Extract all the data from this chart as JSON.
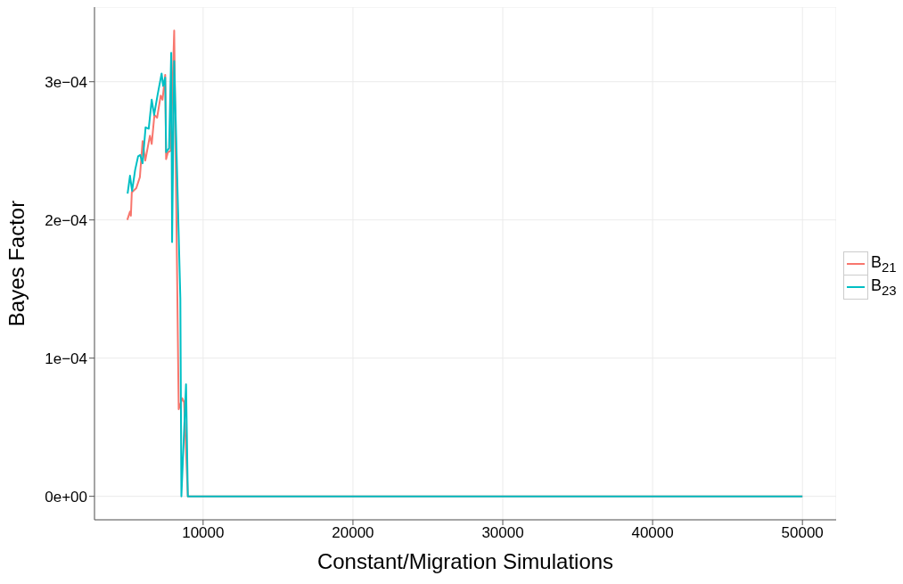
{
  "chart_data": {
    "type": "line",
    "xlabel": "Constant/Migration Simulations",
    "ylabel": "Bayes Factor",
    "xlim": [
      2750,
      52250
    ],
    "xticks": [
      10000,
      20000,
      30000,
      40000,
      50000
    ],
    "ylim": [
      -1.7e-05,
      0.000354
    ],
    "yticks": [
      {
        "value": 0,
        "label": "0e+00"
      },
      {
        "value": 0.0001,
        "label": "1e−04"
      },
      {
        "value": 0.0002,
        "label": "2e−04"
      },
      {
        "value": 0.0003,
        "label": "3e−04"
      }
    ],
    "grid": true,
    "legend": "right",
    "series": [
      {
        "name": "B$_{21}$",
        "color": "#f8766d",
        "x": [
          4940,
          5120,
          5180,
          5240,
          5540,
          5780,
          5960,
          6140,
          6450,
          6570,
          6750,
          6930,
          7170,
          7290,
          7470,
          7530,
          7650,
          7830,
          8070,
          8370,
          8610,
          8730,
          8980,
          50000
        ],
        "values": [
          0.0002,
          0.000206,
          0.000203,
          0.00022,
          0.000223,
          0.000231,
          0.000257,
          0.000243,
          0.000261,
          0.000255,
          0.000276,
          0.000274,
          0.00029,
          0.000287,
          0.000305,
          0.000244,
          0.000249,
          0.00025,
          0.000337,
          6.3e-05,
          7.1e-05,
          6.8e-05,
          0,
          0
        ]
      },
      {
        "name": "B$_{23}$",
        "color": "#00bfc4",
        "x": [
          4960,
          5120,
          5260,
          5460,
          5660,
          5800,
          5960,
          6160,
          6370,
          6570,
          6730,
          6970,
          7230,
          7330,
          7470,
          7530,
          7730,
          7870,
          7930,
          8070,
          8480,
          8550,
          8860,
          8980,
          50000
        ],
        "values": [
          0.000219,
          0.000232,
          0.000221,
          0.000236,
          0.000246,
          0.000247,
          0.000241,
          0.000267,
          0.000266,
          0.000287,
          0.000276,
          0.000291,
          0.000306,
          0.000297,
          0.000303,
          0.000249,
          0.000252,
          0.000321,
          0.000184,
          0.000315,
          0.000143,
          0,
          8.1e-05,
          0,
          0
        ]
      }
    ]
  }
}
